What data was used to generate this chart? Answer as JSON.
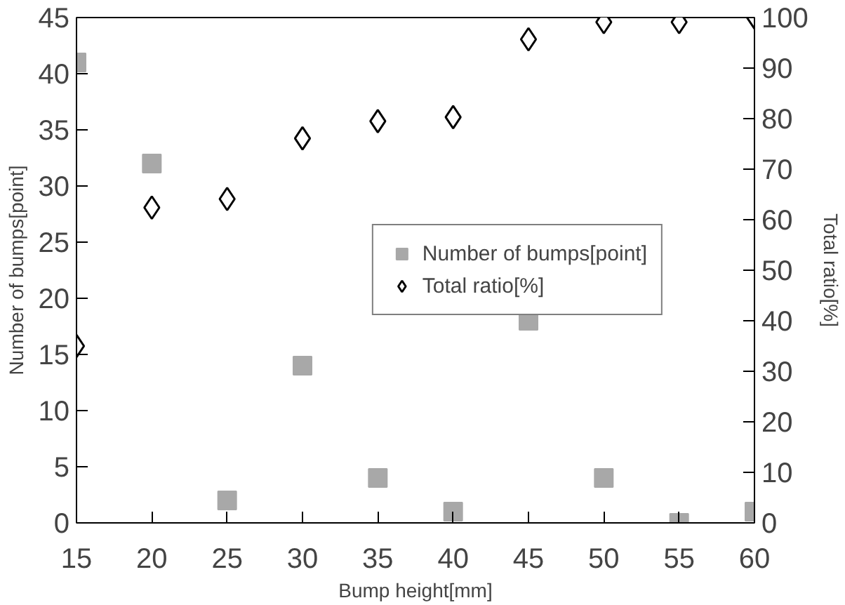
{
  "chart_data": {
    "type": "scatter",
    "xlabel": "Bump height[mm]",
    "ylabel": "Number of bumps[point]",
    "y2label": "Total ratio[%]",
    "x": [
      15,
      20,
      25,
      30,
      35,
      40,
      45,
      50,
      55,
      60
    ],
    "xlim": [
      15,
      60
    ],
    "xticks": [
      15,
      20,
      25,
      30,
      35,
      40,
      45,
      50,
      55,
      60
    ],
    "ylim": [
      0,
      45
    ],
    "yticks": [
      0,
      5,
      10,
      15,
      20,
      25,
      30,
      35,
      40,
      45
    ],
    "y2lim": [
      0,
      100
    ],
    "y2ticks": [
      0,
      10,
      20,
      30,
      40,
      50,
      60,
      70,
      80,
      90,
      100
    ],
    "series": [
      {
        "name": "Number of bumps[point]",
        "color": "#a8a8a8",
        "marker": "square",
        "values": [
          41,
          32,
          2,
          14,
          4,
          1,
          18,
          4,
          0,
          1
        ]
      },
      {
        "name": "Total ratio[%]",
        "color": "#000000",
        "marker": "diamond",
        "axis": "y2",
        "values": [
          35,
          62.4,
          64.1,
          76.1,
          79.5,
          80.3,
          95.7,
          99.1,
          99.1,
          100
        ]
      }
    ],
    "grid": false,
    "legend": "right"
  }
}
